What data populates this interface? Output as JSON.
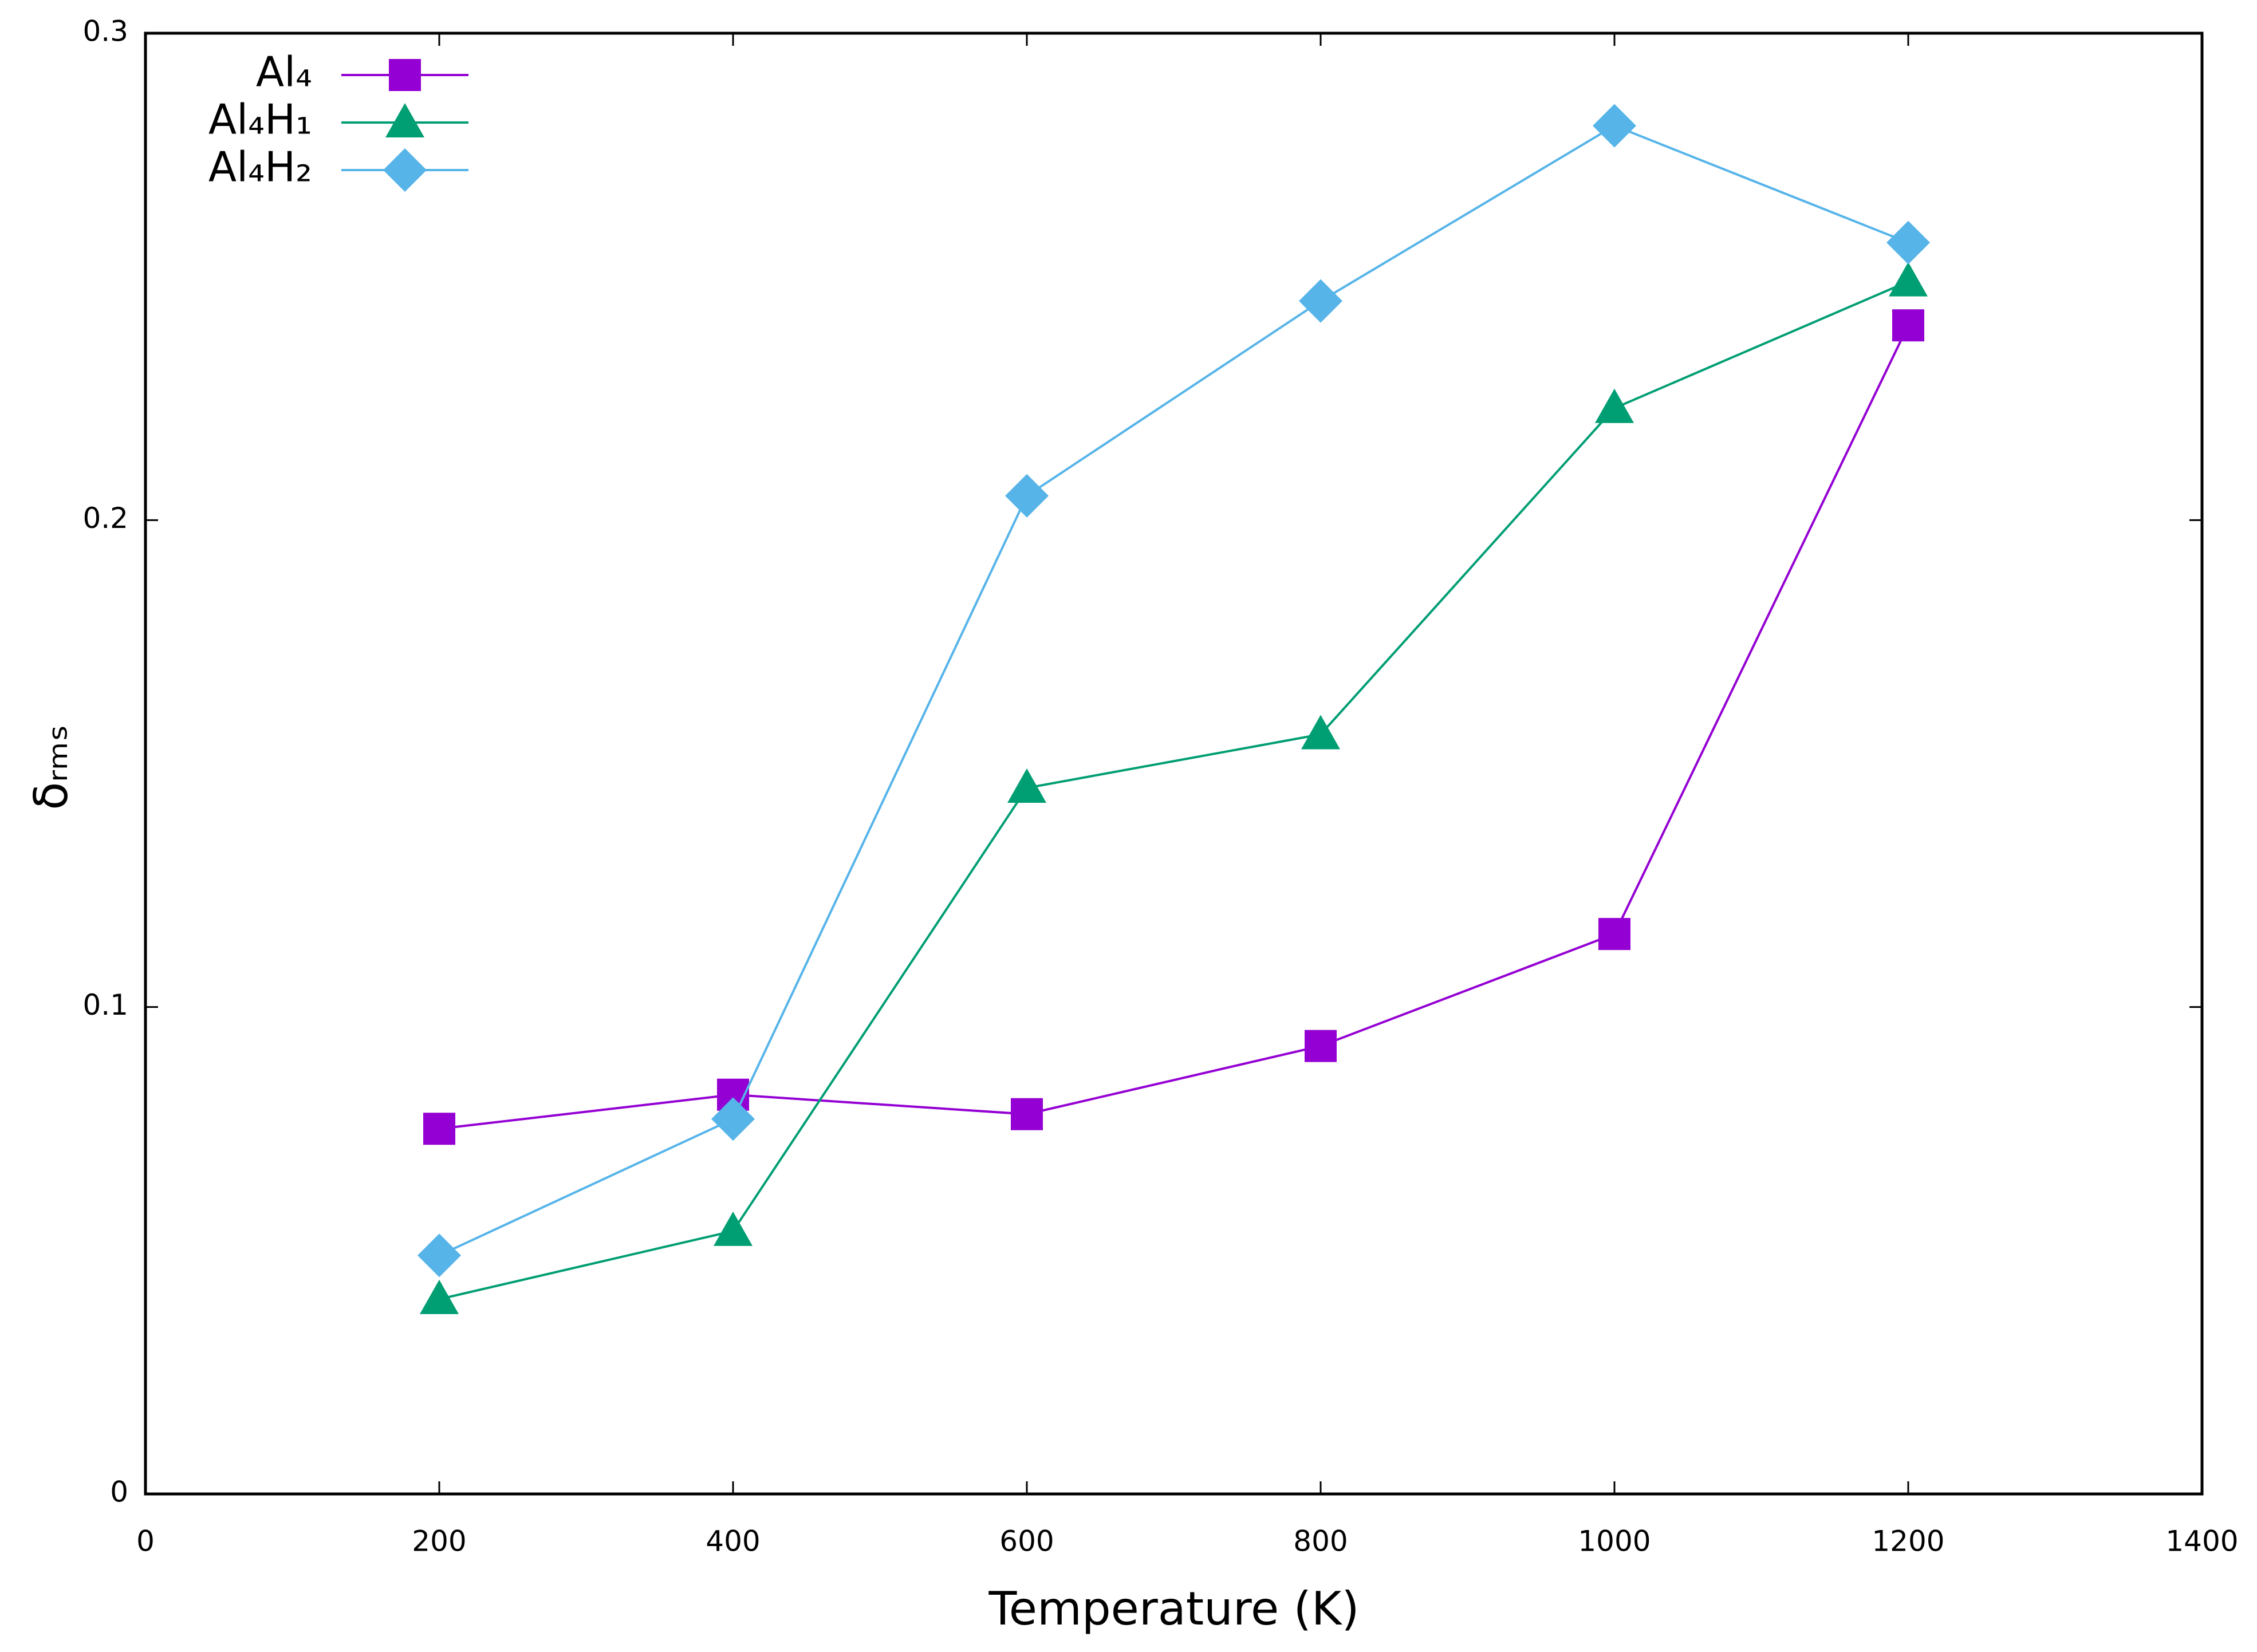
{
  "chart_data": {
    "type": "line",
    "xlabel": "Temperature (K)",
    "ylabel": "δᵣₘₛ",
    "xlim": [
      0,
      1400
    ],
    "ylim": [
      0,
      0.3
    ],
    "xticks": [
      0,
      200,
      400,
      600,
      800,
      1000,
      1200,
      1400
    ],
    "yticks": [
      0,
      0.1,
      0.2,
      0.3
    ],
    "legend": "upper left",
    "x": [
      200,
      400,
      600,
      800,
      1000,
      1200
    ],
    "series": [
      {
        "name": "Al₄",
        "color": "#9400d3",
        "marker": "square",
        "values": [
          0.075,
          0.082,
          0.078,
          0.092,
          0.115,
          0.24
        ]
      },
      {
        "name": "Al₄H₁",
        "color": "#009e73",
        "marker": "triangle",
        "values": [
          0.04,
          0.054,
          0.145,
          0.156,
          0.223,
          0.249
        ]
      },
      {
        "name": "Al₄H₂",
        "color": "#56b4e9",
        "marker": "diamond",
        "values": [
          0.049,
          0.077,
          0.205,
          0.245,
          0.281,
          0.257
        ]
      }
    ]
  }
}
